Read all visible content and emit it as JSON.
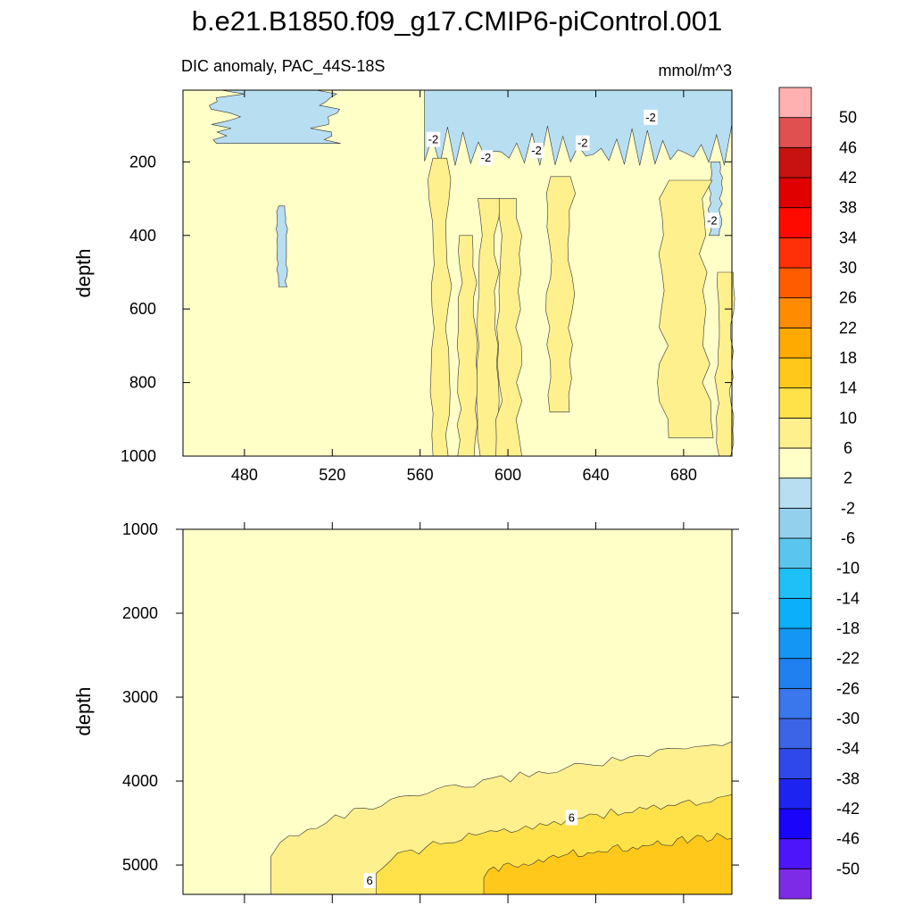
{
  "figure": {
    "title": "b.e21.B1850.f09_g17.CMIP6-piControl.001",
    "subtitle_left": "DIC anomaly, PAC_44S-18S",
    "subtitle_right": "mmol/m^3"
  },
  "chart_data": [
    {
      "type": "contour",
      "panel": "upper",
      "title": "DIC anomaly, PAC_44S-18S",
      "units": "mmol/m^3",
      "xlabel": "",
      "ylabel": "depth",
      "xlim": [
        452,
        702
      ],
      "ylim": [
        1000,
        5
      ],
      "xticks": [
        480,
        520,
        560,
        600,
        640,
        680
      ],
      "yticks": [
        200,
        400,
        600,
        800,
        1000
      ],
      "background_level": "-2 to 2",
      "regions": [
        {
          "level": "-6 to -2",
          "x": [
            562,
            702
          ],
          "depth": [
            5,
            210
          ],
          "note": "near-surface negative anomalies"
        },
        {
          "level": "-6 to -2",
          "x": [
            472,
            518
          ],
          "depth": [
            5,
            150
          ]
        },
        {
          "level": "-6 to -2",
          "x": [
            495,
            499
          ],
          "depth": [
            320,
            540
          ]
        },
        {
          "level": "-6 to -2",
          "x": [
            692,
            697
          ],
          "depth": [
            200,
            400
          ]
        },
        {
          "level": "2 to 6",
          "x": [
            565,
            573
          ],
          "depth": [
            190,
            1000
          ]
        },
        {
          "level": "2 to 6",
          "x": [
            578,
            585
          ],
          "depth": [
            400,
            1000
          ]
        },
        {
          "level": "2 to 6",
          "x": [
            587,
            595
          ],
          "depth": [
            300,
            1000
          ]
        },
        {
          "level": "2 to 6",
          "x": [
            596,
            605
          ],
          "depth": [
            300,
            1000
          ]
        },
        {
          "level": "2 to 6",
          "x": [
            619,
            629
          ],
          "depth": [
            240,
            880
          ]
        },
        {
          "level": "2 to 6",
          "x": [
            670,
            690
          ],
          "depth": [
            250,
            950
          ]
        },
        {
          "level": "2 to 6",
          "x": [
            695,
            702
          ],
          "depth": [
            500,
            1000
          ]
        }
      ],
      "contour_labels": [
        {
          "text": "-2",
          "x": 566,
          "depth": 140
        },
        {
          "text": "-2",
          "x": 590,
          "depth": 190
        },
        {
          "text": "-2",
          "x": 613,
          "depth": 170
        },
        {
          "text": "-2",
          "x": 634,
          "depth": 150
        },
        {
          "text": "-2",
          "x": 665,
          "depth": 80
        },
        {
          "text": "-2",
          "x": 693,
          "depth": 360
        }
      ]
    },
    {
      "type": "contour",
      "panel": "lower",
      "xlabel": "",
      "ylabel": "depth",
      "xlim": [
        452,
        702
      ],
      "ylim": [
        1000,
        5350
      ],
      "xticks": [
        480,
        520,
        560,
        600,
        640,
        680
      ],
      "yticks": [
        1000,
        2000,
        3000,
        4000,
        5000
      ],
      "background_level": "-2 to 2",
      "regions": [
        {
          "level": "2 to 6",
          "x_start": 492,
          "depth_top_at_start": 4900,
          "depth_top_at_end": 3550,
          "note": "wedge deepening to the west"
        },
        {
          "level": "6 to 10",
          "x_start": 540,
          "depth_top_at_start": 5100,
          "depth_top_at_end": 4200
        },
        {
          "level": "10 to 14",
          "x_start": 589,
          "depth_top_at_start": 5150,
          "depth_top_at_end": 4650
        }
      ],
      "contour_labels": [
        {
          "text": "6",
          "x": 537,
          "depth": 5180
        },
        {
          "text": "6",
          "x": 629,
          "depth": 4430
        }
      ]
    }
  ],
  "colorbar": {
    "labels": [
      "50",
      "46",
      "42",
      "38",
      "34",
      "30",
      "26",
      "22",
      "18",
      "14",
      "10",
      "6",
      "2",
      "-2",
      "-6",
      "-10",
      "-14",
      "-18",
      "-22",
      "-26",
      "-30",
      "-34",
      "-38",
      "-42",
      "-46",
      "-50"
    ],
    "colors": [
      "#7D2BE6",
      "#4D16FA",
      "#1A04FA",
      "#1E24F0",
      "#2E48EA",
      "#3C64E6",
      "#3A76EC",
      "#2080F0",
      "#1496F4",
      "#0CB0FA",
      "#1EC0F8",
      "#5AC6F0",
      "#92D0EE",
      "#B8DEF2",
      "#FFFFC8",
      "#FFF08E",
      "#FFE24A",
      "#FFC81A",
      "#FFAA00",
      "#FF8C00",
      "#FF5C00",
      "#FF3008",
      "#FF0A00",
      "#E00000",
      "#C81210",
      "#E05050",
      "#FFB0B0"
    ]
  }
}
